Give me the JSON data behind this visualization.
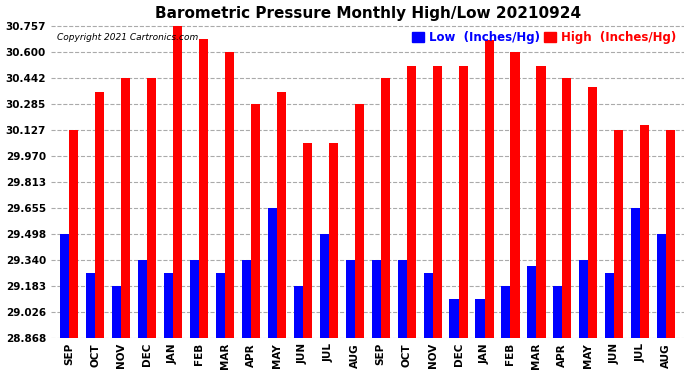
{
  "title": "Barometric Pressure Monthly High/Low 20210924",
  "copyright": "Copyright 2021 Cartronics.com",
  "legend_low": "Low  (Inches/Hg)",
  "legend_high": "High  (Inches/Hg)",
  "categories": [
    "SEP",
    "OCT",
    "NOV",
    "DEC",
    "JAN",
    "FEB",
    "MAR",
    "APR",
    "MAY",
    "JUN",
    "JUL",
    "AUG",
    "SEP",
    "OCT",
    "NOV",
    "DEC",
    "JAN",
    "FEB",
    "MAR",
    "APR",
    "MAY",
    "JUN",
    "JUL",
    "AUG"
  ],
  "high_values": [
    30.127,
    30.362,
    30.442,
    30.442,
    30.757,
    30.68,
    30.6,
    30.285,
    30.362,
    30.049,
    30.049,
    30.285,
    30.442,
    30.52,
    30.52,
    30.52,
    30.677,
    30.6,
    30.52,
    30.442,
    30.392,
    30.127,
    30.162,
    30.127
  ],
  "low_values": [
    29.498,
    29.262,
    29.183,
    29.34,
    29.262,
    29.34,
    29.262,
    29.34,
    29.655,
    29.183,
    29.498,
    29.34,
    29.34,
    29.34,
    29.262,
    29.105,
    29.105,
    29.183,
    29.305,
    29.183,
    29.34,
    29.262,
    29.655,
    29.498
  ],
  "bar_high_color": "#FF0000",
  "bar_low_color": "#0000FF",
  "background_color": "#FFFFFF",
  "grid_color": "#AAAAAA",
  "yticks": [
    28.868,
    29.026,
    29.183,
    29.34,
    29.498,
    29.655,
    29.813,
    29.97,
    30.127,
    30.285,
    30.442,
    30.6,
    30.757
  ],
  "ymin": 28.868,
  "ymax": 30.757,
  "title_fontsize": 11,
  "tick_fontsize": 7.5,
  "legend_fontsize": 8.5
}
